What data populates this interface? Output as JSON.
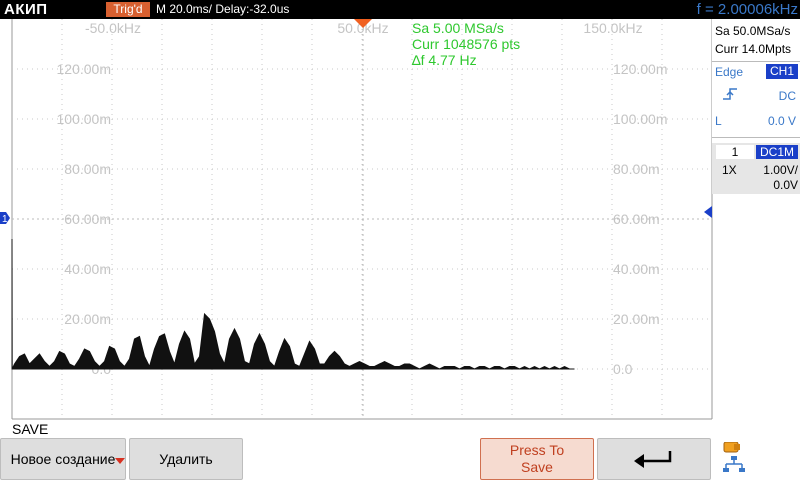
{
  "header": {
    "brand": "АКИП",
    "trigger_status": "Trig'd",
    "timebase": "M 20.0ms/ Delay:-32.0us",
    "frequency": "f = 2.00006kHz"
  },
  "right_panel": {
    "sample_rate": "Sa 50.0MSa/s",
    "memory_depth": "Curr 14.0Mpts",
    "trigger_type": "Edge",
    "trigger_source": "CH1",
    "coupling": "DC",
    "level_label": "L",
    "level_value": "0.0 V",
    "channel_number": "1",
    "channel_coupling": "DC1M",
    "probe": "1X",
    "volts_per_div": "1.00V/",
    "offset": "0.0V"
  },
  "fft_overlay": {
    "sample_rate": "Sa 5.00 MSa/s",
    "points": "Curr 1048576 pts",
    "delta_f": "∆f 4.77 Hz"
  },
  "chart_data": {
    "type": "area",
    "x_tick_labels": [
      "-50.0kHz",
      "50.0kHz",
      "150.0kHz"
    ],
    "y_tick_labels": [
      "120.00m",
      "100.00m",
      "80.00m",
      "60.00m",
      "40.00m",
      "20.00m",
      "0.0"
    ],
    "ylim": [
      0,
      140
    ],
    "grid": true,
    "channel_marker": "1",
    "spectrum": {
      "x": [
        -75,
        -74.9,
        -74,
        -72,
        -70,
        -68,
        -66,
        -64,
        -62,
        -60,
        -58,
        -56,
        -54,
        -52,
        -50,
        -48,
        -46,
        -44,
        -42,
        -40,
        -38,
        -36,
        -34,
        -32,
        -30,
        -28,
        -26,
        -24,
        -22,
        -20,
        -18,
        -16,
        -14,
        -12,
        -10,
        -8,
        -6,
        -4,
        -2,
        0,
        2,
        4,
        6,
        8,
        10,
        12,
        14,
        16,
        18,
        20,
        22,
        24,
        26,
        28,
        30,
        32,
        34,
        36,
        38,
        40,
        42,
        44,
        46,
        48,
        50,
        52,
        54,
        56,
        58,
        60,
        62,
        64,
        66,
        68,
        70,
        72,
        74,
        76,
        78,
        80,
        82,
        84,
        86,
        88,
        90,
        92,
        94,
        96,
        98,
        100,
        102,
        104,
        106,
        108,
        110,
        112,
        114,
        116,
        118,
        120,
        122,
        124,
        126,
        128,
        130,
        132,
        134,
        136,
        138,
        140,
        142,
        144,
        146,
        148,
        150
      ],
      "y": [
        52,
        0,
        2,
        5,
        6,
        2,
        4,
        6,
        3,
        1,
        3,
        7,
        6,
        2,
        1,
        4,
        8,
        7,
        3,
        1,
        3,
        9,
        8,
        3,
        1,
        4,
        12,
        13,
        5,
        1,
        8,
        13,
        14,
        7,
        2,
        10,
        15,
        12,
        2,
        5,
        22,
        20,
        15,
        6,
        2,
        12,
        16,
        12,
        3,
        2,
        10,
        14,
        10,
        3,
        1,
        7,
        12,
        9,
        2,
        1,
        6,
        11,
        8,
        2,
        2,
        5,
        7,
        5,
        2,
        1,
        2,
        3,
        2,
        1,
        1,
        2,
        3,
        2,
        1,
        1,
        2,
        2,
        1,
        0,
        1,
        2,
        1,
        0,
        1,
        1,
        1,
        0,
        1,
        1,
        0,
        1,
        1,
        0,
        1,
        1,
        0,
        1,
        1,
        0,
        1,
        0,
        1,
        0,
        1,
        0,
        1,
        0,
        1,
        0,
        0
      ]
    }
  },
  "save_menu": {
    "title": "SAVE",
    "new_button": "Новое создание",
    "delete_button": "Удалить",
    "press_to_save_line1": "Press To",
    "press_to_save_line2": "Save",
    "back_icon": "return-arrow-icon",
    "usb_icon": "usb-network-icon"
  }
}
